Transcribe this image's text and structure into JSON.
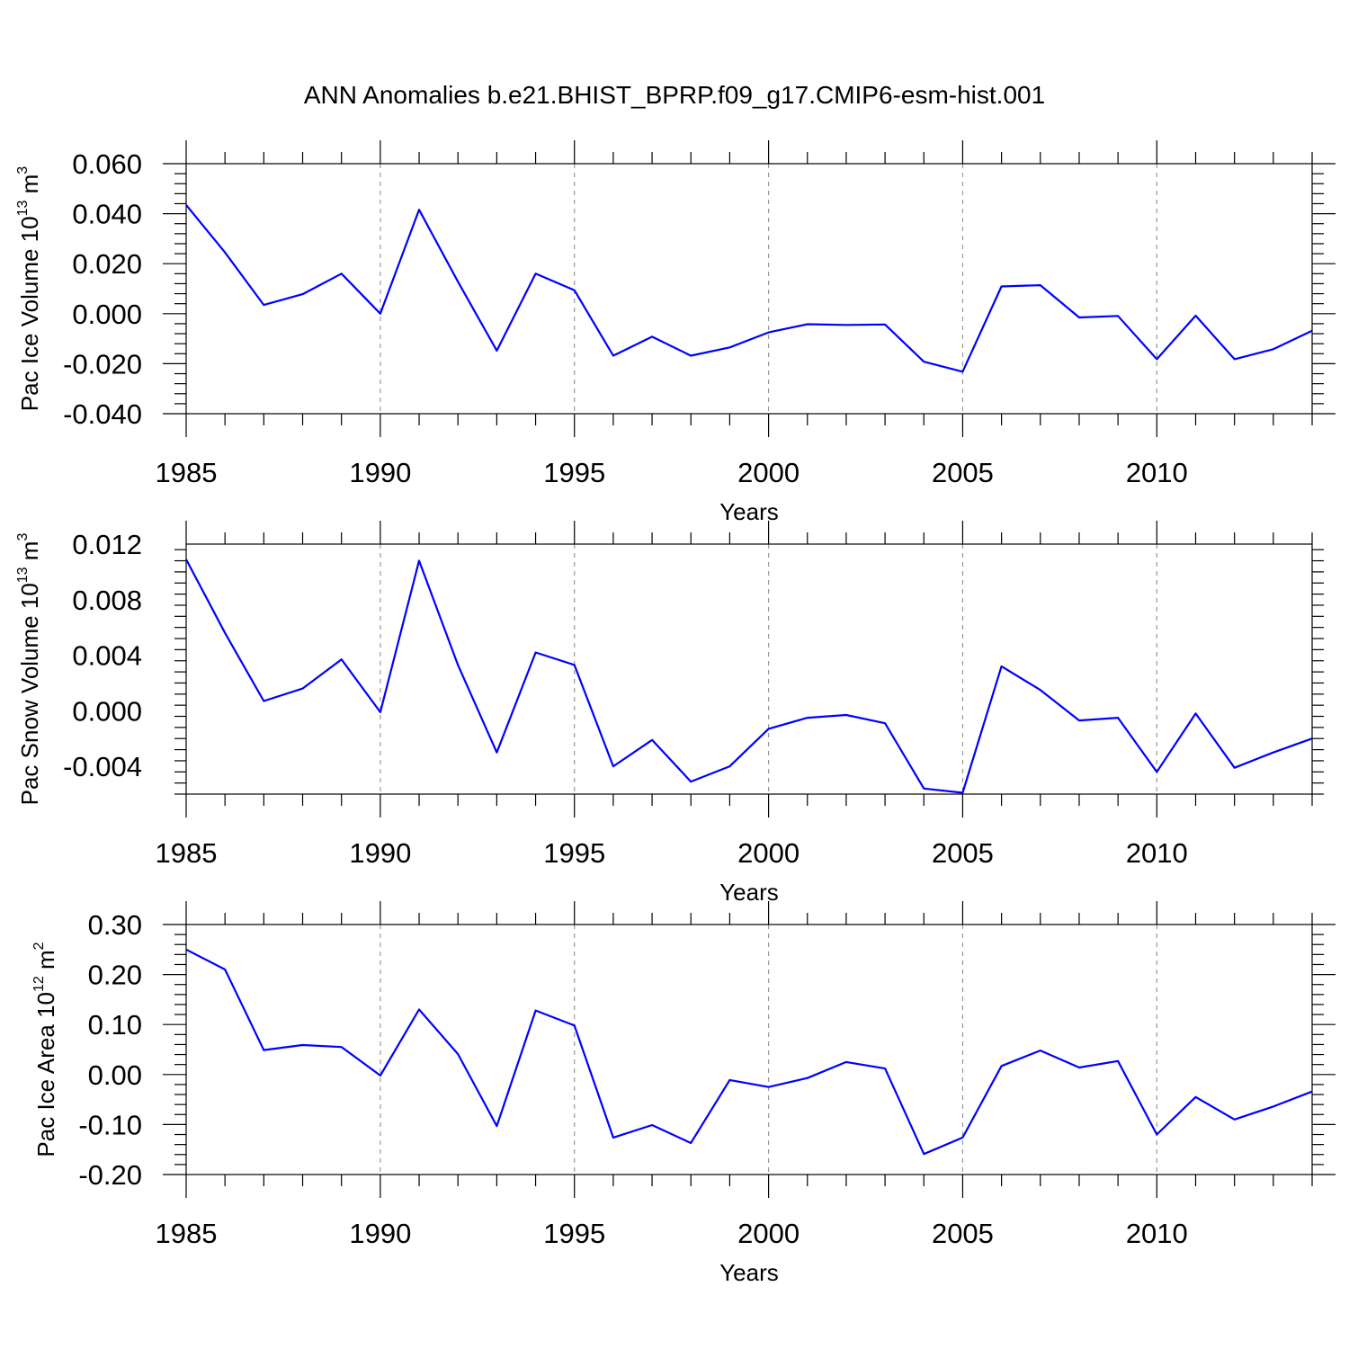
{
  "title": "ANN Anomalies b.e21.BHIST_BPRP.f09_g17.CMIP6-esm-hist.001",
  "line_color": "#0000ff",
  "chart_data": [
    {
      "type": "line",
      "ylabel": "Pac Ice Volume 10",
      "ylabel_exp": "13",
      "ylabel_unit": " m",
      "ylabel_unit_exp": "3",
      "xlabel": "Years",
      "xlim": [
        1985,
        2014
      ],
      "ylim": [
        -0.04,
        0.06
      ],
      "yticks": [
        -0.04,
        -0.02,
        0.0,
        0.02,
        0.04,
        0.06
      ],
      "ytick_labels": [
        "-0.040",
        "-0.020",
        "0.000",
        "0.020",
        "0.040",
        "0.060"
      ],
      "xticks": [
        1985,
        1990,
        1995,
        2000,
        2005,
        2010
      ],
      "xtick_labels": [
        "1985",
        "1990",
        "1995",
        "2000",
        "2005",
        "2010"
      ],
      "x": [
        1985,
        1986,
        1987,
        1988,
        1989,
        1990,
        1991,
        1992,
        1993,
        1994,
        1995,
        1996,
        1997,
        1998,
        1999,
        2000,
        2001,
        2002,
        2003,
        2004,
        2005,
        2006,
        2007,
        2008,
        2009,
        2010,
        2011,
        2012,
        2013,
        2014
      ],
      "y": [
        0.0435,
        0.0245,
        0.0035,
        0.0078,
        0.016,
        0.0,
        0.0416,
        0.0128,
        -0.0148,
        0.016,
        0.0094,
        -0.0168,
        -0.0092,
        -0.0168,
        -0.0135,
        -0.0075,
        -0.0042,
        -0.0045,
        -0.0043,
        -0.0192,
        -0.0232,
        0.0109,
        0.0114,
        -0.0015,
        -0.0009,
        -0.0182,
        -0.0008,
        -0.0182,
        -0.0142,
        -0.0068
      ]
    },
    {
      "type": "line",
      "ylabel": "Pac Snow Volume 10",
      "ylabel_exp": "13",
      "ylabel_unit": " m",
      "ylabel_unit_exp": "3",
      "xlabel": "Years",
      "xlim": [
        1985,
        2014
      ],
      "ylim": [
        -0.006,
        0.012
      ],
      "yticks": [
        -0.004,
        0.0,
        0.004,
        0.008,
        0.012
      ],
      "ytick_labels": [
        "-0.004",
        "0.000",
        "0.004",
        "0.008",
        "0.012"
      ],
      "xticks": [
        1985,
        1990,
        1995,
        2000,
        2005,
        2010
      ],
      "xtick_labels": [
        "1985",
        "1990",
        "1995",
        "2000",
        "2005",
        "2010"
      ],
      "x": [
        1985,
        1986,
        1987,
        1988,
        1989,
        1990,
        1991,
        1992,
        1993,
        1994,
        1995,
        1996,
        1997,
        1998,
        1999,
        2000,
        2001,
        2002,
        2003,
        2004,
        2005,
        2006,
        2007,
        2008,
        2009,
        2010,
        2011,
        2012,
        2013,
        2014
      ],
      "y": [
        0.0109,
        0.0056,
        0.0007,
        0.0016,
        0.0037,
        -0.0001,
        0.0108,
        0.0033,
        -0.003,
        0.0042,
        0.0033,
        -0.004,
        -0.0021,
        -0.0051,
        -0.004,
        -0.0013,
        -0.0005,
        -0.0003,
        -0.0009,
        -0.0056,
        -0.0059,
        0.0032,
        0.0015,
        -0.0007,
        -0.0005,
        -0.0044,
        -0.0002,
        -0.0041,
        -0.003,
        -0.002
      ]
    },
    {
      "type": "line",
      "ylabel": "Pac Ice Area 10",
      "ylabel_exp": "12",
      "ylabel_unit": " m",
      "ylabel_unit_exp": "2",
      "xlabel": "Years",
      "xlim": [
        1985,
        2014
      ],
      "ylim": [
        -0.2,
        0.3
      ],
      "yticks": [
        -0.2,
        -0.1,
        0.0,
        0.1,
        0.2,
        0.3
      ],
      "ytick_labels": [
        "-0.20",
        "-0.10",
        "0.00",
        "0.10",
        "0.20",
        "0.30"
      ],
      "xticks": [
        1985,
        1990,
        1995,
        2000,
        2005,
        2010
      ],
      "xtick_labels": [
        "1985",
        "1990",
        "1995",
        "2000",
        "2005",
        "2010"
      ],
      "x": [
        1985,
        1986,
        1987,
        1988,
        1989,
        1990,
        1991,
        1992,
        1993,
        1994,
        1995,
        1996,
        1997,
        1998,
        1999,
        2000,
        2001,
        2002,
        2003,
        2004,
        2005,
        2006,
        2007,
        2008,
        2009,
        2010,
        2011,
        2012,
        2013,
        2014
      ],
      "y": [
        0.25,
        0.21,
        0.049,
        0.059,
        0.055,
        -0.002,
        0.13,
        0.041,
        -0.103,
        0.128,
        0.098,
        -0.126,
        -0.101,
        -0.137,
        -0.011,
        -0.025,
        -0.007,
        0.025,
        0.012,
        -0.159,
        -0.126,
        0.017,
        0.048,
        0.014,
        0.027,
        -0.12,
        -0.045,
        -0.09,
        -0.064,
        -0.034
      ]
    }
  ]
}
